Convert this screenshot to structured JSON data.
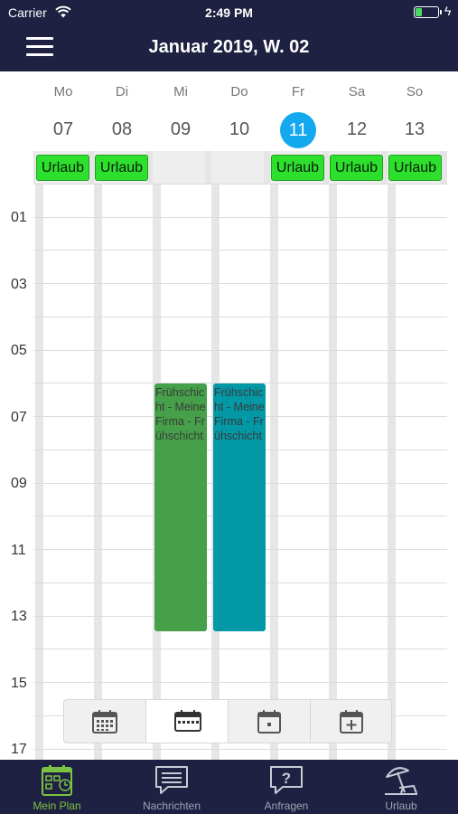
{
  "status_bar": {
    "carrier": "Carrier",
    "time": "2:49 PM"
  },
  "header": {
    "title": "Januar 2019, W. 02"
  },
  "week": {
    "days": [
      {
        "name": "Mo",
        "num": "07"
      },
      {
        "name": "Di",
        "num": "08"
      },
      {
        "name": "Mi",
        "num": "09"
      },
      {
        "name": "Do",
        "num": "10"
      },
      {
        "name": "Fr",
        "num": "11",
        "today": true
      },
      {
        "name": "Sa",
        "num": "12"
      },
      {
        "name": "So",
        "num": "13"
      }
    ]
  },
  "all_day": [
    {
      "day": "Mo",
      "label": "Urlaub"
    },
    {
      "day": "Di",
      "label": "Urlaub"
    },
    {
      "day": "Fr",
      "label": "Urlaub"
    },
    {
      "day": "Sa",
      "label": "Urlaub"
    },
    {
      "day": "So",
      "label": "Urlaub"
    }
  ],
  "hour_labels": [
    "01",
    "03",
    "05",
    "07",
    "09",
    "11",
    "13",
    "15",
    "17"
  ],
  "events": [
    {
      "day": "Mi",
      "text": "Frühschicht - Meine Firma - Frühschicht",
      "color": "#45a049"
    },
    {
      "day": "Do",
      "text": "Frühschicht - Meine Firma - Frühschicht",
      "color": "#0398a6"
    }
  ],
  "view_switcher": [
    {
      "icon": "month-calendar-icon",
      "active": false
    },
    {
      "icon": "week-calendar-icon",
      "active": true
    },
    {
      "icon": "day-calendar-icon",
      "active": false
    },
    {
      "icon": "add-calendar-icon",
      "active": false
    }
  ],
  "tabs": [
    {
      "label": "Mein Plan",
      "icon": "plan-icon",
      "active": true
    },
    {
      "label": "Nachrichten",
      "icon": "message-icon",
      "active": false
    },
    {
      "label": "Anfragen",
      "icon": "question-icon",
      "active": false
    },
    {
      "label": "Urlaub",
      "icon": "beach-icon",
      "active": false
    }
  ],
  "colors": {
    "nav_background": "#1e2141",
    "today": "#14a9ee",
    "urlaub": "#2de02d",
    "active_tab": "#7cc243"
  }
}
